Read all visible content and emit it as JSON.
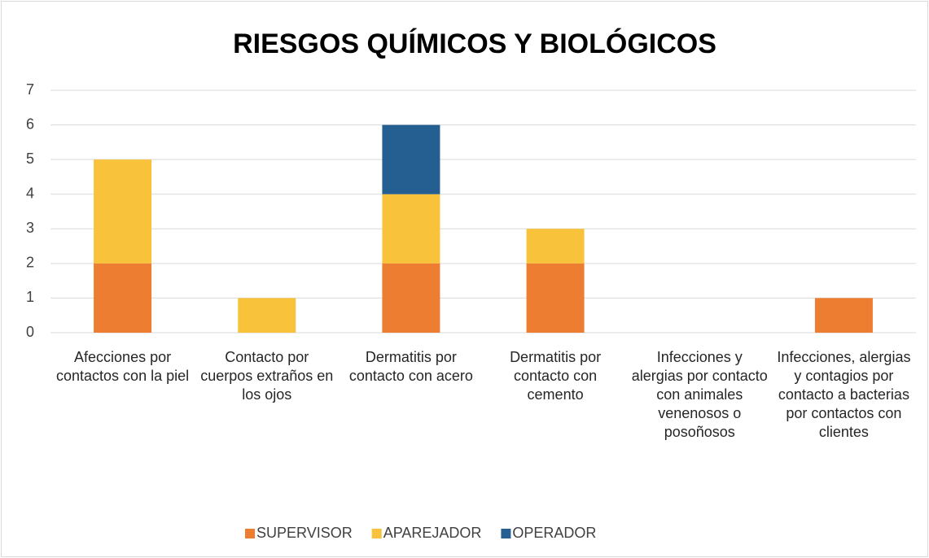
{
  "chart_data": {
    "type": "stacked_bar",
    "title": "RIESGOS QUÍMICOS Y BIOLÓGICOS",
    "categories": [
      "Afecciones por contactos con la piel",
      "Contacto por cuerpos extraños en los ojos",
      "Dermatitis por contacto con acero",
      "Dermatitis por contacto con cemento",
      "Infecciones y alergias por contacto con animales venenosos o posoñosos",
      "Infecciones, alergias y contagios por contacto a bacterias por contactos con clientes"
    ],
    "series": [
      {
        "name": "SUPERVISOR",
        "color": "#ed7d31",
        "values": [
          2,
          0,
          2,
          2,
          0,
          1
        ]
      },
      {
        "name": "APAREJADOR",
        "color": "#f8c23a",
        "values": [
          3,
          1,
          2,
          1,
          0,
          0
        ]
      },
      {
        "name": "OPERADOR",
        "color": "#255e91",
        "values": [
          0,
          0,
          2,
          0,
          0,
          0
        ]
      }
    ],
    "ylim": [
      0,
      7
    ],
    "yticks": [
      0,
      1,
      2,
      3,
      4,
      5,
      6,
      7
    ],
    "grid": true,
    "legend": "bottom"
  }
}
